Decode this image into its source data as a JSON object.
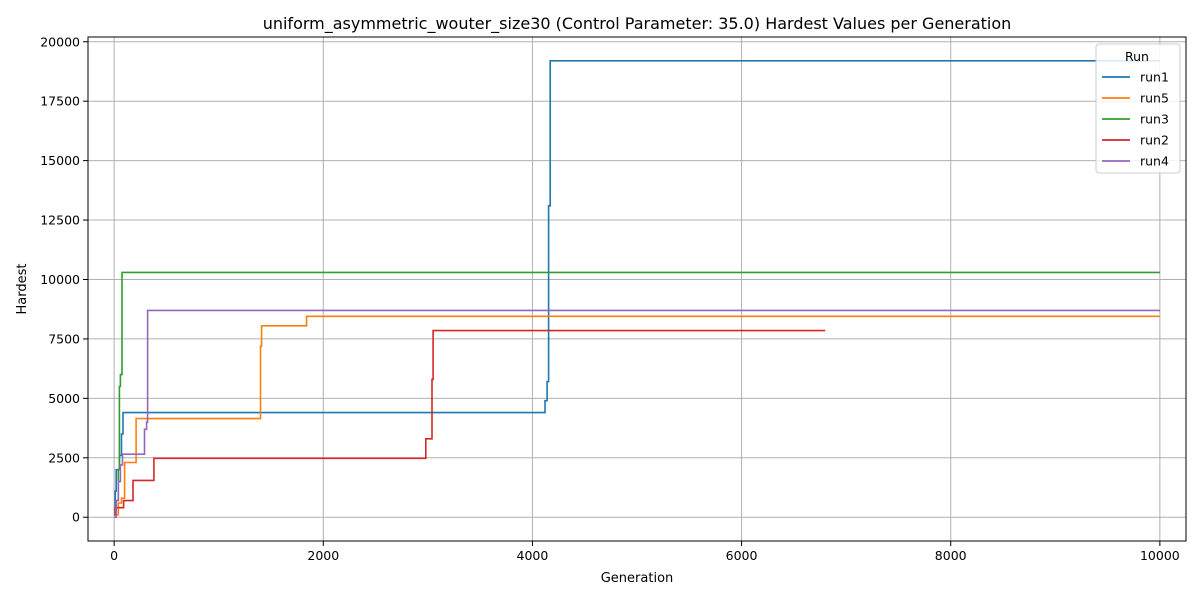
{
  "chart_data": {
    "type": "line",
    "title": "uniform_asymmetric_wouter_size30 (Control Parameter: 35.0) Hardest Values per Generation",
    "xlabel": "Generation",
    "ylabel": "Hardest",
    "xlim": [
      -250,
      10250
    ],
    "ylim": [
      -1000,
      20200
    ],
    "xticks": [
      0,
      2000,
      4000,
      6000,
      8000,
      10000
    ],
    "xtick_labels": [
      "0",
      "2000",
      "4000",
      "6000",
      "8000",
      "10000"
    ],
    "yticks": [
      0,
      2500,
      5000,
      7500,
      10000,
      12500,
      15000,
      17500,
      20000
    ],
    "ytick_labels": [
      "0",
      "2500",
      "5000",
      "7500",
      "10000",
      "12500",
      "15000",
      "17500",
      "20000"
    ],
    "grid": true,
    "legend": {
      "title": "Run",
      "position": "top-right"
    },
    "series": [
      {
        "name": "run1",
        "color": "#1f77b4",
        "points": [
          [
            0,
            300
          ],
          [
            10,
            300
          ],
          [
            10,
            1100
          ],
          [
            20,
            1100
          ],
          [
            20,
            2000
          ],
          [
            50,
            2000
          ],
          [
            50,
            2600
          ],
          [
            70,
            2600
          ],
          [
            70,
            3500
          ],
          [
            85,
            3500
          ],
          [
            85,
            4400
          ],
          [
            4120,
            4400
          ],
          [
            4120,
            4900
          ],
          [
            4140,
            4900
          ],
          [
            4140,
            5700
          ],
          [
            4155,
            5700
          ],
          [
            4155,
            13100
          ],
          [
            4170,
            13100
          ],
          [
            4170,
            19200
          ],
          [
            10000,
            19200
          ]
        ]
      },
      {
        "name": "run5",
        "color": "#ff7f0e",
        "points": [
          [
            0,
            100
          ],
          [
            40,
            100
          ],
          [
            40,
            600
          ],
          [
            70,
            600
          ],
          [
            70,
            800
          ],
          [
            100,
            800
          ],
          [
            100,
            2300
          ],
          [
            210,
            2300
          ],
          [
            210,
            4150
          ],
          [
            1400,
            4150
          ],
          [
            1400,
            7200
          ],
          [
            1410,
            7200
          ],
          [
            1410,
            8050
          ],
          [
            1840,
            8050
          ],
          [
            1840,
            8450
          ],
          [
            10000,
            8450
          ]
        ]
      },
      {
        "name": "run3",
        "color": "#2ca02c",
        "points": [
          [
            0,
            200
          ],
          [
            20,
            200
          ],
          [
            20,
            700
          ],
          [
            40,
            700
          ],
          [
            40,
            2000
          ],
          [
            50,
            2000
          ],
          [
            50,
            5500
          ],
          [
            60,
            5500
          ],
          [
            60,
            6000
          ],
          [
            75,
            6000
          ],
          [
            75,
            10300
          ],
          [
            10000,
            10300
          ]
        ]
      },
      {
        "name": "run2",
        "color": "#d62728",
        "points": [
          [
            0,
            100
          ],
          [
            10,
            100
          ],
          [
            10,
            400
          ],
          [
            90,
            400
          ],
          [
            90,
            700
          ],
          [
            180,
            700
          ],
          [
            180,
            1550
          ],
          [
            380,
            1550
          ],
          [
            380,
            2480
          ],
          [
            2980,
            2480
          ],
          [
            2980,
            3300
          ],
          [
            3040,
            3300
          ],
          [
            3040,
            5800
          ],
          [
            3050,
            5800
          ],
          [
            3050,
            7850
          ],
          [
            6800,
            7850
          ]
        ]
      },
      {
        "name": "run4",
        "color": "#9467bd",
        "points": [
          [
            0,
            0
          ],
          [
            20,
            0
          ],
          [
            20,
            700
          ],
          [
            40,
            700
          ],
          [
            40,
            1500
          ],
          [
            60,
            1500
          ],
          [
            60,
            2200
          ],
          [
            80,
            2200
          ],
          [
            80,
            2650
          ],
          [
            290,
            2650
          ],
          [
            290,
            3700
          ],
          [
            310,
            3700
          ],
          [
            310,
            4000
          ],
          [
            320,
            4000
          ],
          [
            320,
            8700
          ],
          [
            10000,
            8700
          ]
        ]
      }
    ]
  }
}
